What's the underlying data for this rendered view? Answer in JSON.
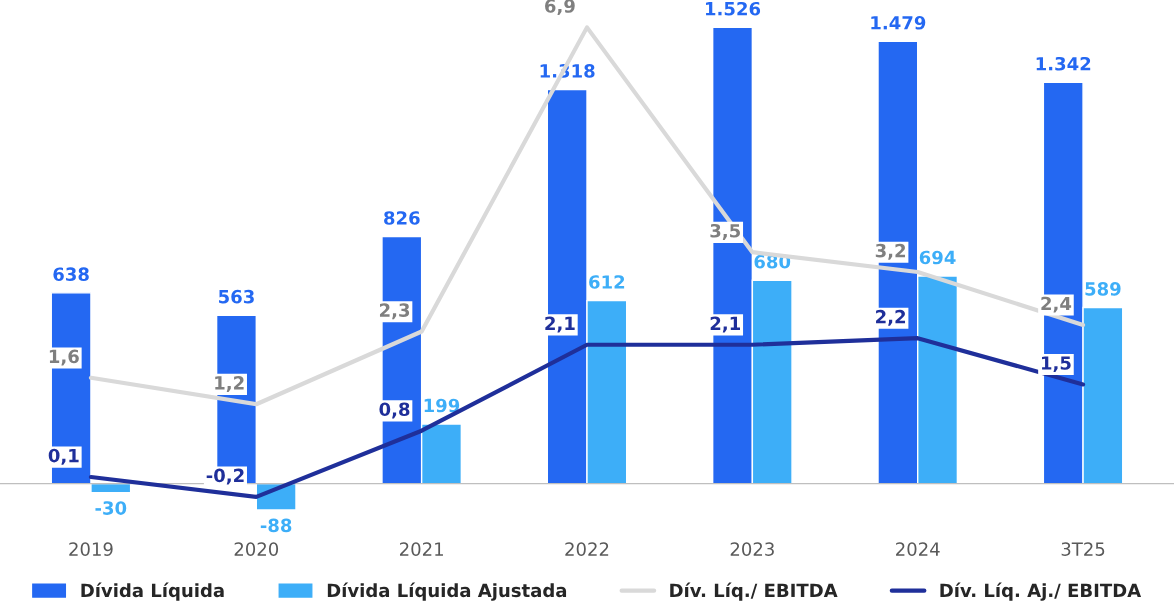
{
  "chart_data": {
    "type": "bar",
    "categories": [
      "2019",
      "2020",
      "2021",
      "2022",
      "2023",
      "2024",
      "3T25"
    ],
    "series": [
      {
        "name": "Dívida Líquida",
        "color": "#2468f2",
        "values": [
          638,
          563,
          826,
          1318,
          1526,
          1479,
          1342
        ],
        "value_labels": [
          "638",
          "563",
          "826",
          "1.318",
          "1.526",
          "1.479",
          "1.342"
        ]
      },
      {
        "name": "Dívida Líquida Ajustada",
        "color": "#3daef8",
        "values": [
          -30,
          -88,
          199,
          612,
          680,
          694,
          589
        ],
        "value_labels": [
          "-30",
          "-88",
          "199",
          "612",
          "680",
          "694",
          "589"
        ]
      },
      {
        "name": "Dív. Líq./ EBITDA",
        "type": "line",
        "axis": "y2",
        "color": "#d9d9d9",
        "values": [
          1.6,
          1.2,
          2.3,
          6.9,
          3.5,
          3.2,
          2.4
        ],
        "value_labels": [
          "1,6",
          "1,2",
          "2,3",
          "6,9",
          "3,5",
          "3,2",
          "2,4"
        ]
      },
      {
        "name": "Dív. Líq. Aj./ EBITDA",
        "type": "line",
        "axis": "y2",
        "color": "#1f2f9a",
        "values": [
          0.1,
          -0.2,
          0.8,
          2.1,
          2.1,
          2.2,
          1.5
        ],
        "value_labels": [
          "0,1",
          "-0,2",
          "0,8",
          "2,1",
          "2,1",
          "2,2",
          "1,5"
        ]
      }
    ],
    "tick_labels": "x",
    "legend": "bottom",
    "grid": false,
    "marker": "none",
    "line_style": "solid"
  }
}
